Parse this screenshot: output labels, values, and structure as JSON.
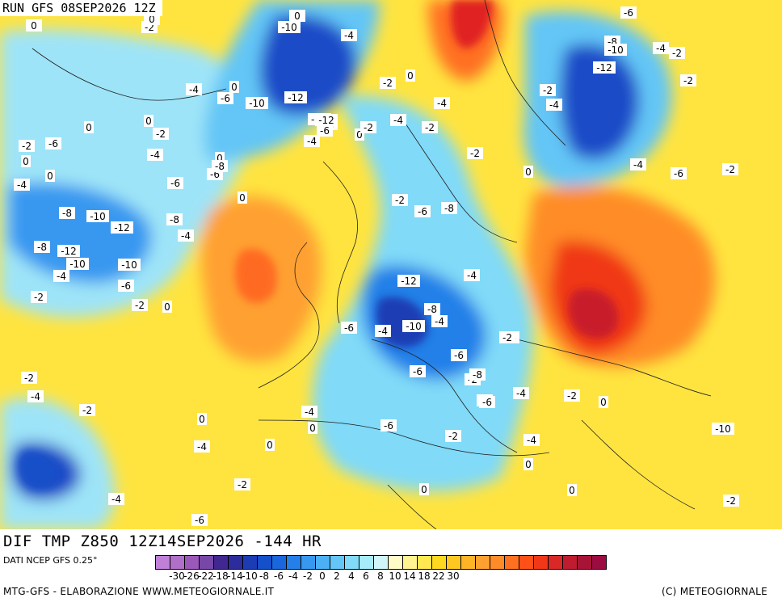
{
  "run_label": "RUN GFS 08SEP2026 12Z",
  "field_label": "DIF TMP Z850 12Z14SEP2026 -144 HR",
  "dati_label": "DATI NCEP GFS 0.25°",
  "credit_left": "MTG-GFS - ELABORAZIONE WWW.METEOGIORNALE.IT",
  "credit_right": "(C) METEOGIORNALE",
  "scale": {
    "colors": [
      "#c080d8",
      "#b070c8",
      "#9a58b8",
      "#7848a8",
      "#402890",
      "#2c2c9c",
      "#1c3cb4",
      "#1450c8",
      "#1a66dc",
      "#2480e8",
      "#3898f0",
      "#4cb0f4",
      "#64c6f6",
      "#80daf8",
      "#a6ecfa",
      "#d0f6fa",
      "#fffcc8",
      "#fff490",
      "#ffe850",
      "#ffd820",
      "#ffc820",
      "#ffb428",
      "#ffa030",
      "#ff8c28",
      "#ff7020",
      "#ff5018",
      "#f03818",
      "#d82828",
      "#c01c30",
      "#a81438",
      "#9c0c40"
    ],
    "tick_labels": [
      "-30",
      "-26",
      "-22",
      "-18",
      "-14",
      "-10",
      "-8",
      "-6",
      "-4",
      "-2",
      "0",
      "2",
      "4",
      "6",
      "8",
      "10",
      "14",
      "18",
      "22",
      "30"
    ],
    "tick_slots": [
      1,
      3,
      5,
      7,
      9,
      11,
      13,
      15,
      17,
      19,
      21,
      23,
      25,
      27,
      29,
      31,
      33,
      35,
      37,
      39
    ]
  },
  "map": {
    "land_background": "#ffe440",
    "value_labels": [
      {
        "t": "-2"
      },
      {
        "t": "-2"
      },
      {
        "t": "-4"
      },
      {
        "t": "-8"
      },
      {
        "t": "-10"
      },
      {
        "t": "-4"
      },
      {
        "t": "-6"
      },
      {
        "t": "-8"
      },
      {
        "t": "-10"
      },
      {
        "t": "-4"
      },
      {
        "t": "-2"
      },
      {
        "t": "-2"
      },
      {
        "t": "0"
      },
      {
        "t": "-4"
      },
      {
        "t": "0"
      },
      {
        "t": "-6"
      },
      {
        "t": "-10"
      },
      {
        "t": "-12"
      },
      {
        "t": "-12"
      },
      {
        "t": "-2"
      },
      {
        "t": "-4"
      },
      {
        "t": "-4"
      },
      {
        "t": "0"
      },
      {
        "t": "0"
      },
      {
        "t": "-2"
      },
      {
        "t": "-6"
      },
      {
        "t": "-2"
      },
      {
        "t": "-4"
      },
      {
        "t": "-2"
      },
      {
        "t": "0"
      },
      {
        "t": "-2"
      },
      {
        "t": "-4"
      },
      {
        "t": "-12"
      },
      {
        "t": "-6"
      },
      {
        "t": "-2"
      },
      {
        "t": "0"
      },
      {
        "t": "-4"
      },
      {
        "t": "0"
      },
      {
        "t": "-2"
      },
      {
        "t": "-6"
      },
      {
        "t": "0"
      },
      {
        "t": "-6"
      },
      {
        "t": "-8"
      },
      {
        "t": "-4"
      },
      {
        "t": "-2"
      },
      {
        "t": "-4"
      },
      {
        "t": "-6"
      },
      {
        "t": "-8"
      },
      {
        "t": "-10"
      },
      {
        "t": "-12"
      },
      {
        "t": "-8"
      },
      {
        "t": "-4"
      },
      {
        "t": "-2"
      },
      {
        "t": "-8"
      },
      {
        "t": "-12"
      },
      {
        "t": "-10"
      },
      {
        "t": "-10"
      },
      {
        "t": "-4"
      },
      {
        "t": "-6"
      },
      {
        "t": "-2"
      },
      {
        "t": "0"
      },
      {
        "t": "0"
      },
      {
        "t": "-6"
      },
      {
        "t": "-2"
      },
      {
        "t": "0"
      },
      {
        "t": "-4"
      },
      {
        "t": "-2"
      },
      {
        "t": "-8"
      },
      {
        "t": "-6"
      },
      {
        "t": "-12"
      },
      {
        "t": "-8"
      },
      {
        "t": "-4"
      },
      {
        "t": "-10"
      },
      {
        "t": "-6"
      },
      {
        "t": "-8"
      },
      {
        "t": "-4"
      },
      {
        "t": "-2"
      },
      {
        "t": "-2"
      },
      {
        "t": "-4"
      },
      {
        "t": "-2"
      },
      {
        "t": "0"
      },
      {
        "t": "-4"
      },
      {
        "t": "-2"
      },
      {
        "t": "-6"
      },
      {
        "t": "-4"
      },
      {
        "t": "-6"
      },
      {
        "t": "-6"
      },
      {
        "t": "-4"
      },
      {
        "t": "-2"
      },
      {
        "t": "0"
      },
      {
        "t": "-6"
      },
      {
        "t": "-4"
      },
      {
        "t": "-8"
      },
      {
        "t": "-2"
      },
      {
        "t": "-6"
      },
      {
        "t": "0"
      },
      {
        "t": "-10"
      },
      {
        "t": "-4"
      },
      {
        "t": "0"
      },
      {
        "t": "-2"
      },
      {
        "t": "-4"
      },
      {
        "t": "0"
      },
      {
        "t": "0"
      },
      {
        "t": "-6"
      },
      {
        "t": "0"
      },
      {
        "t": "-2"
      },
      {
        "t": "0"
      },
      {
        "t": "-2"
      },
      {
        "t": "0"
      },
      {
        "t": "0"
      }
    ]
  }
}
